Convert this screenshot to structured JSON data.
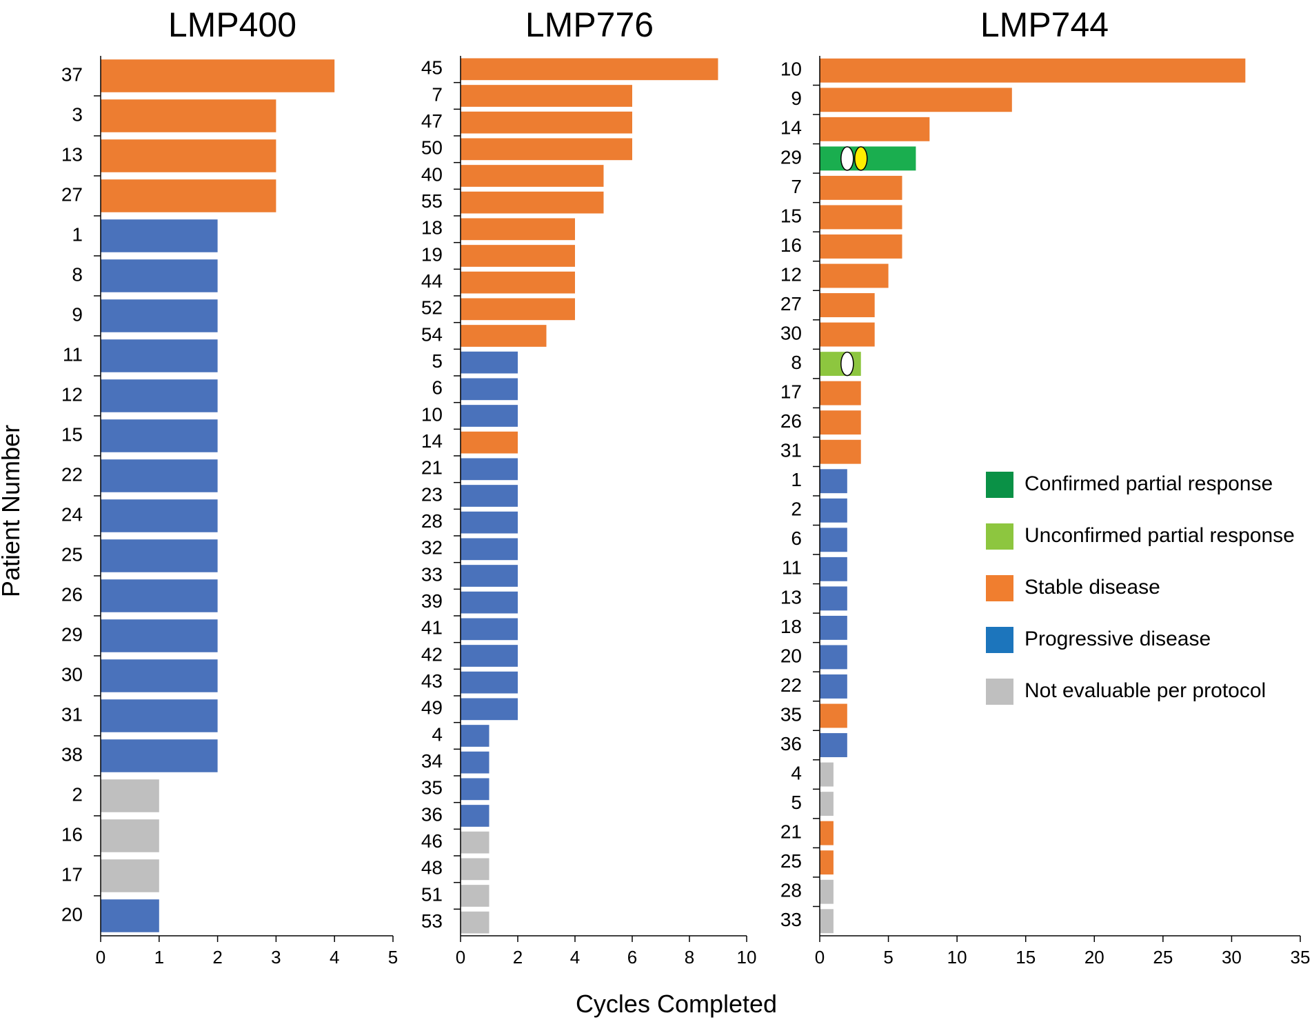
{
  "figure": {
    "ylabel": "Patient Number",
    "xlabel": "Cycles Completed"
  },
  "legend": [
    {
      "key": "cpr",
      "label": "Confirmed partial response",
      "color": "#0a9146"
    },
    {
      "key": "upr",
      "label": "Unconfirmed partial response",
      "color": "#8dc63f"
    },
    {
      "key": "sd",
      "label": "Stable disease",
      "color": "#f07e2f"
    },
    {
      "key": "pd",
      "label": "Progressive disease",
      "color": "#1c75bc"
    },
    {
      "key": "ne",
      "label": "Not evaluable per protocol",
      "color": "#bfbfbf"
    }
  ],
  "bar_colors": {
    "cpr": "#1aae4f",
    "upr": "#8dc63f",
    "sd": "#ed7d31",
    "pd": "#4a72bb",
    "ne": "#bfbfbf"
  },
  "marker_colors": {
    "white": "#ffffff",
    "yellow": "#ffee00"
  },
  "chart_data": [
    {
      "type": "bar",
      "orientation": "horizontal",
      "title": "LMP400",
      "xlabel": "Cycles Completed",
      "ylabel": "Patient Number",
      "xlim": [
        0,
        5
      ],
      "xticks": [
        0,
        1,
        2,
        3,
        4,
        5
      ],
      "categories": [
        "37",
        "3",
        "13",
        "27",
        "1",
        "8",
        "9",
        "11",
        "12",
        "15",
        "22",
        "24",
        "25",
        "26",
        "29",
        "30",
        "31",
        "38",
        "2",
        "16",
        "17",
        "20"
      ],
      "values": [
        4,
        3,
        3,
        3,
        2,
        2,
        2,
        2,
        2,
        2,
        2,
        2,
        2,
        2,
        2,
        2,
        2,
        2,
        1,
        1,
        1,
        1
      ],
      "response": [
        "sd",
        "sd",
        "sd",
        "sd",
        "pd",
        "pd",
        "pd",
        "pd",
        "pd",
        "pd",
        "pd",
        "pd",
        "pd",
        "pd",
        "pd",
        "pd",
        "pd",
        "pd",
        "ne",
        "ne",
        "ne",
        "pd"
      ],
      "markers": []
    },
    {
      "type": "bar",
      "orientation": "horizontal",
      "title": "LMP776",
      "xlabel": "Cycles Completed",
      "ylabel": "Patient Number",
      "xlim": [
        0,
        10
      ],
      "xticks": [
        0,
        2,
        4,
        6,
        8,
        10
      ],
      "categories": [
        "45",
        "7",
        "47",
        "50",
        "40",
        "55",
        "18",
        "19",
        "44",
        "52",
        "54",
        "5",
        "6",
        "10",
        "14",
        "21",
        "23",
        "28",
        "32",
        "33",
        "39",
        "41",
        "42",
        "43",
        "49",
        "4",
        "34",
        "35",
        "36",
        "46",
        "48",
        "51",
        "53"
      ],
      "values": [
        9,
        6,
        6,
        6,
        5,
        5,
        4,
        4,
        4,
        4,
        3,
        2,
        2,
        2,
        2,
        2,
        2,
        2,
        2,
        2,
        2,
        2,
        2,
        2,
        2,
        1,
        1,
        1,
        1,
        1,
        1,
        1,
        1
      ],
      "response": [
        "sd",
        "sd",
        "sd",
        "sd",
        "sd",
        "sd",
        "sd",
        "sd",
        "sd",
        "sd",
        "sd",
        "pd",
        "pd",
        "pd",
        "sd",
        "pd",
        "pd",
        "pd",
        "pd",
        "pd",
        "pd",
        "pd",
        "pd",
        "pd",
        "pd",
        "pd",
        "pd",
        "pd",
        "pd",
        "ne",
        "ne",
        "ne",
        "ne"
      ],
      "markers": []
    },
    {
      "type": "bar",
      "orientation": "horizontal",
      "title": "LMP744",
      "xlabel": "Cycles Completed",
      "ylabel": "Patient Number",
      "xlim": [
        0,
        35
      ],
      "xticks": [
        0,
        5,
        10,
        15,
        20,
        25,
        30,
        35
      ],
      "categories": [
        "10",
        "9",
        "14",
        "29",
        "7",
        "15",
        "16",
        "12",
        "27",
        "30",
        "8",
        "17",
        "26",
        "31",
        "1",
        "2",
        "6",
        "11",
        "13",
        "18",
        "20",
        "22",
        "35",
        "36",
        "4",
        "5",
        "21",
        "25",
        "28",
        "33"
      ],
      "values": [
        31,
        14,
        8,
        7,
        6,
        6,
        6,
        5,
        4,
        4,
        3,
        3,
        3,
        3,
        2,
        2,
        2,
        2,
        2,
        2,
        2,
        2,
        2,
        2,
        1,
        1,
        1,
        1,
        1,
        1
      ],
      "response": [
        "sd",
        "sd",
        "sd",
        "cpr",
        "sd",
        "sd",
        "sd",
        "sd",
        "sd",
        "sd",
        "upr",
        "sd",
        "sd",
        "sd",
        "pd",
        "pd",
        "pd",
        "pd",
        "pd",
        "pd",
        "pd",
        "pd",
        "sd",
        "pd",
        "ne",
        "ne",
        "sd",
        "sd",
        "ne",
        "ne"
      ],
      "markers": [
        {
          "patient": "29",
          "cycle": 2,
          "color": "white"
        },
        {
          "patient": "29",
          "cycle": 3,
          "color": "yellow"
        },
        {
          "patient": "8",
          "cycle": 2,
          "color": "white"
        }
      ]
    }
  ]
}
